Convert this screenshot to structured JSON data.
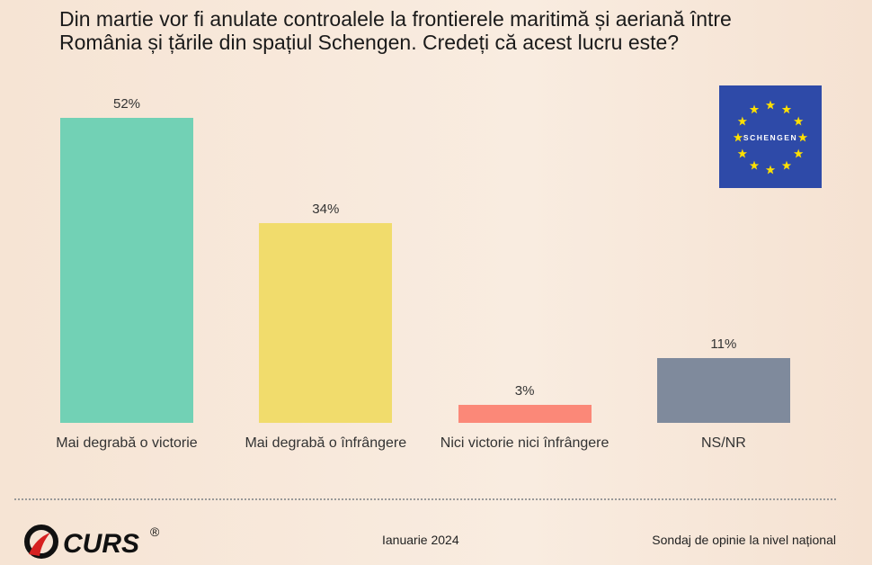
{
  "title": "Din martie vor fi anulate controalele la frontierele maritimă și aeriană între România și țările din spațiul Schengen. Credeți că acest lucru este?",
  "chart_data": {
    "type": "bar",
    "categories": [
      "Mai degrabă o victorie",
      "Mai degrabă o înfrângere",
      "Nici victorie nici înfrângere",
      "NS/NR"
    ],
    "values": [
      52,
      34,
      3,
      11
    ],
    "data_labels": [
      "52%",
      "34%",
      "3%",
      "11%"
    ],
    "colors": [
      "#72d1b5",
      "#f1dc6c",
      "#fb8878",
      "#7f8a9c"
    ],
    "unit": "%",
    "grid": false
  },
  "flag": {
    "text": "SCHENGEN",
    "background": "#2e4aa8",
    "star_color": "#ffe000"
  },
  "footer": {
    "logo": "CURS®",
    "date": "Ianuarie 2024",
    "survey": "Sondaj de opinie la nivel național"
  }
}
